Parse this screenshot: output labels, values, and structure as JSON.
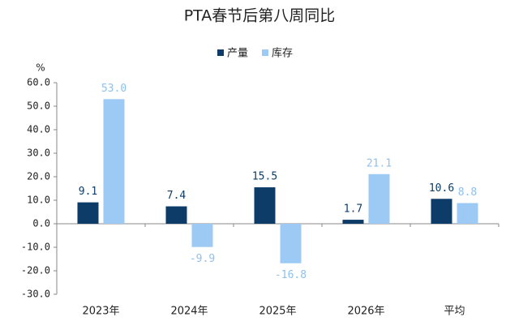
{
  "chart_data": {
    "type": "bar",
    "title": "PTA春节后第八周同比",
    "y_label": "%",
    "categories": [
      "2023年",
      "2024年",
      "2025年",
      "2026年",
      "平均"
    ],
    "series": [
      {
        "name": "产量",
        "color": "#0d3c69",
        "values": [
          9.1,
          7.4,
          15.5,
          1.7,
          10.6
        ]
      },
      {
        "name": "库存",
        "color": "#9dcaf4",
        "values": [
          53.0,
          -9.9,
          -16.8,
          21.1,
          8.8
        ],
        "value_labels": [
          "53.0",
          "-9.9",
          "-16.8",
          "21.1",
          "8.8"
        ]
      }
    ],
    "ylim": [
      -30,
      60
    ],
    "yticks": [
      {
        "value": -30,
        "label": "-30.0"
      },
      {
        "value": -20,
        "label": "-20.0"
      },
      {
        "value": -10,
        "label": "-10.0"
      },
      {
        "value": 0,
        "label": "0.0"
      },
      {
        "value": 10,
        "label": "10.0"
      },
      {
        "value": 20,
        "label": "20.0"
      },
      {
        "value": 30,
        "label": "30.0"
      },
      {
        "value": 40,
        "label": "40.0"
      },
      {
        "value": 50,
        "label": "50.0"
      },
      {
        "value": 60,
        "label": "60.0"
      }
    ],
    "legend": "top"
  }
}
